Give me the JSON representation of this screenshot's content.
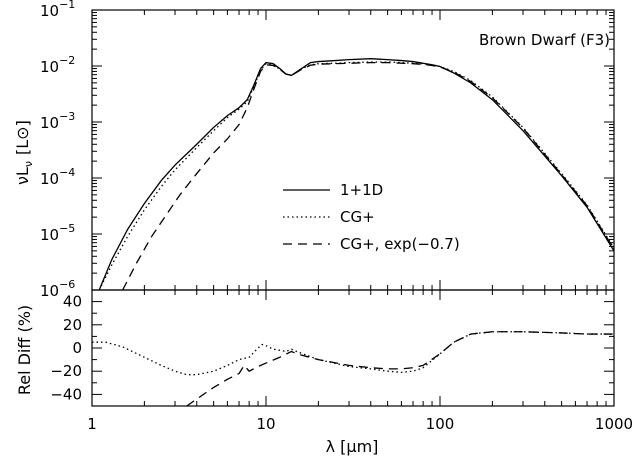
{
  "chart_data": [
    {
      "type": "line",
      "panel": "top",
      "annotation": "Brown Dwarf (F3)",
      "ylabel_main": "νL",
      "ylabel_sub": "ν",
      "ylabel_units": "[L⊙]",
      "xscale": "log",
      "yscale": "log",
      "xlim": [
        1,
        1000
      ],
      "ylim": [
        1e-06,
        0.1
      ],
      "y_ticks": [
        {
          "base": "10",
          "exp": "−6",
          "value": 1e-06
        },
        {
          "base": "10",
          "exp": "−5",
          "value": 1e-05
        },
        {
          "base": "10",
          "exp": "−4",
          "value": 0.0001
        },
        {
          "base": "10",
          "exp": "−3",
          "value": 0.001
        },
        {
          "base": "10",
          "exp": "−2",
          "value": 0.01
        },
        {
          "base": "10",
          "exp": "−1",
          "value": 0.1
        }
      ],
      "legend_placement": "center",
      "series": [
        {
          "name": "1+1D",
          "style": "solid",
          "x": [
            1.1,
            1.3,
            1.6,
            2,
            2.5,
            3,
            4,
            5,
            6,
            7,
            7.8,
            8.5,
            9.3,
            10,
            11,
            12,
            13,
            14,
            16,
            18,
            20,
            25,
            30,
            40,
            50,
            60,
            70,
            80,
            90,
            100,
            120,
            150,
            200,
            300,
            500,
            700,
            1000
          ],
          "y": [
            1e-06,
            3.5e-06,
            1.2e-05,
            3.5e-05,
            9e-05,
            0.00017,
            0.0004,
            0.0008,
            0.0013,
            0.0018,
            0.0025,
            0.0045,
            0.009,
            0.0115,
            0.011,
            0.009,
            0.0072,
            0.0068,
            0.009,
            0.0115,
            0.012,
            0.0125,
            0.013,
            0.0135,
            0.013,
            0.0125,
            0.012,
            0.0112,
            0.0105,
            0.0098,
            0.0075,
            0.005,
            0.0025,
            0.0007,
            0.00011,
            3e-05,
            5e-06
          ]
        },
        {
          "name": "CG+",
          "style": "dotted",
          "x": [
            1.1,
            1.3,
            1.6,
            2,
            2.5,
            3,
            4,
            5,
            6,
            7,
            7.8,
            8.5,
            9.3,
            10,
            11,
            12,
            13,
            14,
            16,
            18,
            20,
            25,
            30,
            40,
            50,
            60,
            70,
            80,
            90,
            100,
            120,
            150,
            200,
            300,
            500,
            700,
            1000
          ],
          "y": [
            1e-06,
            2.8e-06,
            9e-06,
            2.7e-05,
            7e-05,
            0.00014,
            0.00035,
            0.0007,
            0.0012,
            0.0017,
            0.0023,
            0.0042,
            0.0085,
            0.011,
            0.0105,
            0.0088,
            0.0072,
            0.0068,
            0.0088,
            0.0105,
            0.011,
            0.0112,
            0.0115,
            0.0118,
            0.0118,
            0.0115,
            0.0112,
            0.011,
            0.0105,
            0.0098,
            0.008,
            0.0055,
            0.0028,
            0.0008,
            0.00012,
            3.3e-05,
            5.6e-06
          ]
        },
        {
          "name": "CG+, exp(−0.7)",
          "style": "dashed",
          "x": [
            1.5,
            1.8,
            2.2,
            2.7,
            3.2,
            4,
            5,
            6,
            7,
            7.8,
            8.5,
            9.3,
            10,
            11,
            12,
            13,
            14,
            16,
            18,
            20,
            25,
            30,
            40,
            50,
            60,
            70,
            80,
            90,
            100,
            120,
            150,
            200,
            300,
            500,
            700,
            1000
          ],
          "y": [
            1e-06,
            3e-06,
            9e-06,
            2.3e-05,
            5e-05,
            0.00012,
            0.00028,
            0.0005,
            0.0009,
            0.0018,
            0.0038,
            0.008,
            0.0105,
            0.0102,
            0.0087,
            0.0072,
            0.0068,
            0.0087,
            0.0103,
            0.0108,
            0.011,
            0.0112,
            0.0115,
            0.0115,
            0.0112,
            0.011,
            0.0107,
            0.0102,
            0.0096,
            0.0078,
            0.0053,
            0.0027,
            0.00078,
            0.000115,
            3.2e-05,
            5.4e-06
          ]
        }
      ]
    },
    {
      "type": "line",
      "panel": "bottom",
      "ylabel": "Rel Diff (%)",
      "xlabel": "λ [μm]",
      "xscale": "log",
      "xlim": [
        1,
        1000
      ],
      "ylim": [
        -50,
        50
      ],
      "x_tick_labels": [
        {
          "label": "1",
          "value": 1
        },
        {
          "label": "10",
          "value": 10
        },
        {
          "label": "100",
          "value": 100
        },
        {
          "label": "1000",
          "value": 1000
        }
      ],
      "y_tick_labels": [
        {
          "label": "40",
          "value": 40
        },
        {
          "label": "20",
          "value": 20
        },
        {
          "label": "0",
          "value": 0
        },
        {
          "label": "−20",
          "value": -20
        },
        {
          "label": "−40",
          "value": -40
        }
      ],
      "series": [
        {
          "name": "CG+",
          "style": "dotted",
          "x": [
            1,
            1.2,
            1.5,
            2,
            2.5,
            3,
            3.5,
            4,
            5,
            6,
            7,
            7.5,
            8,
            9,
            9.5,
            10,
            11,
            12,
            13,
            14,
            15,
            20,
            30,
            40,
            50,
            60,
            70,
            80,
            100,
            120,
            150,
            200,
            300,
            500,
            700,
            1000
          ],
          "y": [
            5,
            5,
            1,
            -8,
            -15,
            -20,
            -23,
            -23,
            -20,
            -15,
            -10,
            -9,
            -8,
            0,
            3,
            2,
            -1,
            -2,
            -3,
            -1,
            -3,
            -10,
            -16,
            -18,
            -20,
            -21,
            -20,
            -17,
            -5,
            5,
            12,
            14,
            14,
            13,
            12,
            12
          ]
        },
        {
          "name": "CG+, exp(−0.7)",
          "style": "dashed",
          "x": [
            3.5,
            4,
            5,
            6,
            7,
            7.5,
            8,
            9,
            10,
            12,
            14,
            15,
            20,
            30,
            40,
            50,
            60,
            70,
            80,
            100,
            120,
            150,
            200,
            300,
            500,
            700,
            1000
          ],
          "y": [
            -50,
            -44,
            -34,
            -27,
            -22,
            -15,
            -20,
            -16,
            -13,
            -8,
            -3,
            -5,
            -10,
            -15,
            -17,
            -18,
            -18,
            -17,
            -15,
            -5,
            5,
            12,
            14,
            14,
            13,
            12,
            12
          ]
        }
      ]
    }
  ]
}
